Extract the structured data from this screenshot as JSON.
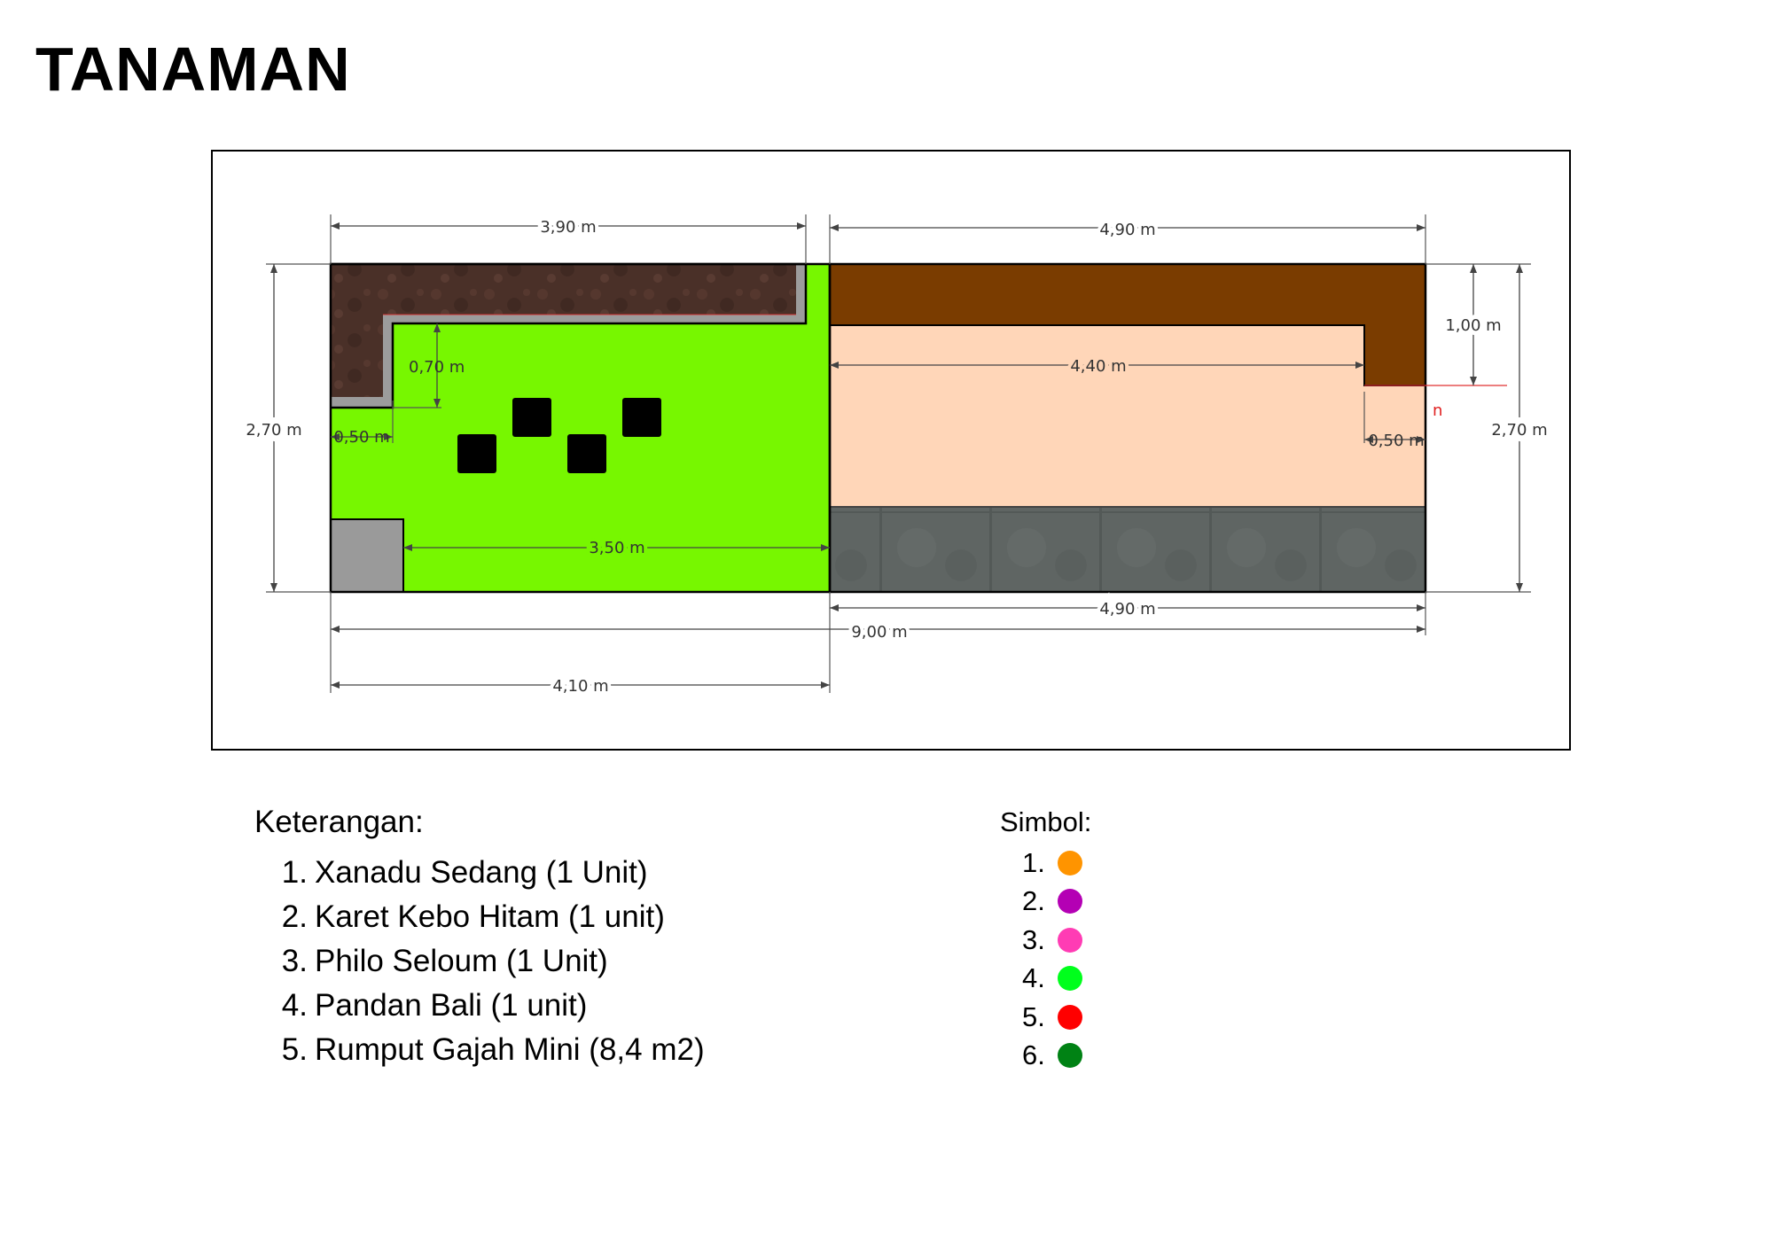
{
  "title": "TANAMAN",
  "plan": {
    "dimensions": {
      "top_left": "3,90 m",
      "top_right": "4,90 m",
      "left_height": "2,70 m",
      "right_height": "2,70 m",
      "inner_070": "0,70 m",
      "inner_050_left": "0,50 m",
      "inner_350": "3,50 m",
      "inner_440": "4,40 m",
      "right_100": "1,00 m",
      "inner_050_right": "0,50 m",
      "bottom_490": "4,90 m",
      "bottom_900": "9,00 m",
      "bottom_410": "4,10 m",
      "red_fragment": "n"
    },
    "colors": {
      "grass": "#77f700",
      "soil_texture": "#4a3028",
      "brown_bed": "#7a3c00",
      "floor": "#ffd6b8",
      "stone": "#5f6563",
      "concrete": "#9a9a9a"
    }
  },
  "legend": {
    "title": "Keterangan:",
    "items": [
      {
        "num": "1.",
        "label": "Xanadu Sedang (1 Unit)"
      },
      {
        "num": "2.",
        "label": "Karet Kebo Hitam (1 unit)"
      },
      {
        "num": "3.",
        "label": "Philo Seloum (1 Unit)"
      },
      {
        "num": "4.",
        "label": "Pandan Bali (1 unit)"
      },
      {
        "num": "5.",
        "label": "Rumput Gajah Mini (8,4 m2)"
      }
    ]
  },
  "symbols": {
    "title": "Simbol:",
    "items": [
      {
        "num": "1.",
        "color": "#ff9400"
      },
      {
        "num": "2.",
        "color": "#b400b4"
      },
      {
        "num": "3.",
        "color": "#ff3cb4"
      },
      {
        "num": "4.",
        "color": "#00ff1c"
      },
      {
        "num": "5.",
        "color": "#ff0000"
      },
      {
        "num": "6.",
        "color": "#008214"
      }
    ]
  }
}
